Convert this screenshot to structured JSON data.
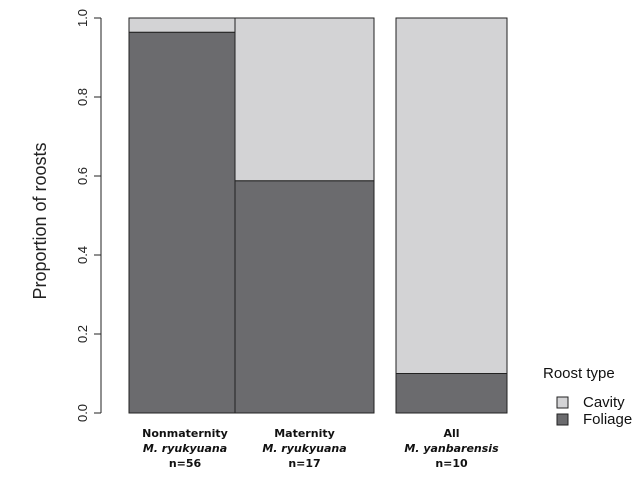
{
  "chart_data": {
    "type": "bar",
    "stacked": true,
    "normalized": true,
    "title": "",
    "xlabel": "",
    "ylabel": "Proportion of roosts",
    "ylim": [
      0,
      1
    ],
    "yticks": [
      "0.0",
      "0.2",
      "0.4",
      "0.6",
      "0.8",
      "1.0"
    ],
    "ytick_values": [
      0,
      0.2,
      0.4,
      0.6,
      0.8,
      1.0
    ],
    "categories": [
      {
        "line1": "Nonmaternity",
        "line2": "M. ryukyuana",
        "line3": "n=56"
      },
      {
        "line1": "Maternity",
        "line2": "M. ryukyuana",
        "line3": "n=17"
      },
      {
        "line1": "All",
        "line2": "M. yanbarensis",
        "line3": "n=10"
      }
    ],
    "series": [
      {
        "name": "Foliage",
        "color": "#6b6b6e",
        "values": [
          0.964,
          0.588,
          0.1
        ]
      },
      {
        "name": "Cavity",
        "color": "#d3d3d5",
        "values": [
          0.036,
          0.412,
          0.9
        ]
      }
    ],
    "legend": {
      "title": "Roost type",
      "placement": "bottom-right",
      "entries": [
        "Cavity",
        "Foliage"
      ]
    },
    "grid": false
  }
}
